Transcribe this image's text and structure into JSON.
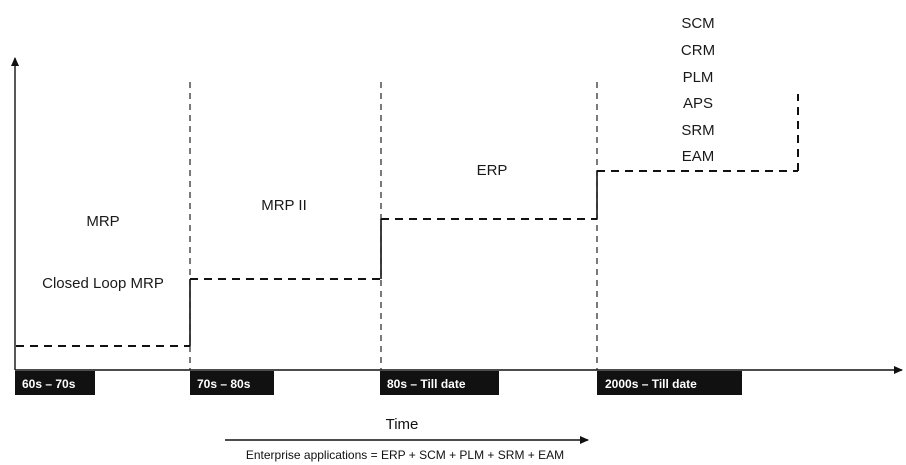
{
  "stages": [
    {
      "name": "mrp",
      "labels": [
        "MRP",
        "Closed Loop MRP"
      ]
    },
    {
      "name": "mrp-ii",
      "labels": [
        "MRP II"
      ]
    },
    {
      "name": "erp",
      "labels": [
        "ERP"
      ]
    },
    {
      "name": "extended",
      "labels": [
        "SCM",
        "CRM",
        "PLM",
        "APS",
        "SRM",
        "EAM"
      ]
    }
  ],
  "eras": [
    "60s – 70s",
    "70s – 80s",
    "80s – Till date",
    "2000s – Till date"
  ],
  "time_label": "Time",
  "caption": "Enterprise applications = ERP + SCM + PLM + SRM + EAM",
  "colors": {
    "ink": "#111111",
    "background": "#ffffff"
  }
}
